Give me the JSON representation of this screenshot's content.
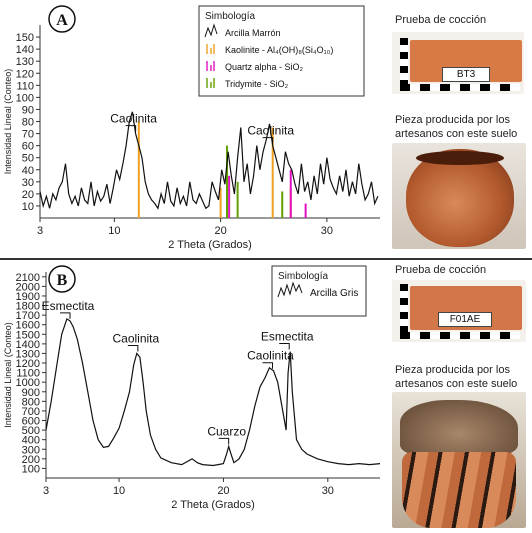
{
  "colors": {
    "brown": "#c86f3a",
    "dark": "#333333",
    "gray": "#555555",
    "kaolinite": "#f0a020",
    "quartz": "#e010c0",
    "tridymite": "#60a000",
    "sample_gray": "#7d6d5a"
  },
  "panelA": {
    "letter": "A",
    "legend": {
      "title": "Simbología",
      "items": [
        {
          "label": "Arcilla Marrón",
          "icon": "dark-wave"
        },
        {
          "label": "Kaolinite - Al₄(OH)₈(Si₄O₁₀)",
          "icon": "orange-bars"
        },
        {
          "label": "Quartz alpha - SiO₂",
          "icon": "magenta-bars"
        },
        {
          "label": "Tridymite - SiO₂",
          "icon": "green-bars"
        }
      ]
    },
    "side": {
      "firing_title": "Prueba de cocción",
      "tile_label": "BT3",
      "piece_caption_line1": "Pieza producida por los",
      "piece_caption_line2": "artesanos con este suelo"
    }
  },
  "panelB": {
    "letter": "B",
    "legend": {
      "title": "Simbología",
      "items": [
        {
          "label": "Arcilla Gris",
          "icon": "dark-wave"
        }
      ]
    },
    "side": {
      "firing_title": "Prueba de cocción",
      "tile_label": "F01AE",
      "piece_caption_line1": "Pieza producida por los",
      "piece_caption_line2": "artesanos con este suelo"
    }
  },
  "chart_data": [
    {
      "type": "line",
      "xlabel": "2 Theta (Grados)",
      "ylabel": "Intensidad Lineal (Conteo)",
      "xlim": [
        3,
        35
      ],
      "ylim": [
        0,
        160
      ],
      "xticks": [
        3,
        10,
        20,
        30
      ],
      "yticks": [
        10,
        20,
        30,
        40,
        50,
        60,
        70,
        80,
        90,
        100,
        110,
        120,
        130,
        140,
        150
      ],
      "series": [
        {
          "name": "Arcilla Marrón",
          "x": [
            3.0,
            3.3,
            3.6,
            3.9,
            4.2,
            4.5,
            4.8,
            5.1,
            5.4,
            5.7,
            6.0,
            6.3,
            6.6,
            6.9,
            7.2,
            7.5,
            7.8,
            8.1,
            8.4,
            8.7,
            9.0,
            9.3,
            9.6,
            9.9,
            10.2,
            10.5,
            10.8,
            11.1,
            11.4,
            11.7,
            12.0,
            12.3,
            12.6,
            12.9,
            13.2,
            13.5,
            13.8,
            14.1,
            14.4,
            14.7,
            15.0,
            15.3,
            15.6,
            15.9,
            16.2,
            16.5,
            16.8,
            17.1,
            17.4,
            17.7,
            18.0,
            18.3,
            18.6,
            18.9,
            19.2,
            19.5,
            19.8,
            20.1,
            20.4,
            20.7,
            21.0,
            21.3,
            21.6,
            21.9,
            22.2,
            22.5,
            22.8,
            23.1,
            23.4,
            23.7,
            24.0,
            24.3,
            24.6,
            24.9,
            25.2,
            25.5,
            25.8,
            26.1,
            26.4,
            26.7,
            27.0,
            27.3,
            27.6,
            27.9,
            28.2,
            28.5,
            28.8,
            29.1,
            29.4,
            29.7,
            30.0,
            30.3,
            30.6,
            30.9,
            31.2,
            31.5,
            31.8,
            32.1,
            32.4,
            32.7,
            33.0,
            33.3,
            33.6,
            33.9,
            34.2,
            34.5,
            34.8
          ],
          "y": [
            22,
            10,
            18,
            8,
            20,
            15,
            25,
            30,
            45,
            20,
            12,
            18,
            10,
            25,
            15,
            12,
            30,
            10,
            22,
            14,
            18,
            28,
            12,
            25,
            40,
            32,
            45,
            60,
            80,
            88,
            70,
            60,
            50,
            30,
            20,
            15,
            12,
            8,
            20,
            12,
            30,
            14,
            10,
            25,
            12,
            18,
            10,
            30,
            15,
            12,
            20,
            14,
            8,
            10,
            30,
            22,
            15,
            40,
            28,
            55,
            35,
            20,
            50,
            75,
            30,
            45,
            20,
            35,
            60,
            40,
            55,
            65,
            78,
            60,
            50,
            40,
            30,
            55,
            45,
            40,
            28,
            20,
            45,
            22,
            30,
            15,
            35,
            20,
            45,
            28,
            50,
            32,
            25,
            20,
            35,
            22,
            40,
            18,
            30,
            20,
            45,
            28,
            15,
            20,
            30,
            12,
            18
          ]
        }
      ],
      "reference_lines": {
        "kaolinite": [
          {
            "x": 12.3,
            "y": 80
          },
          {
            "x": 20.0,
            "y": 25
          },
          {
            "x": 24.9,
            "y": 75
          },
          {
            "x": 26.6,
            "y": 25
          }
        ],
        "quartz": [
          {
            "x": 20.8,
            "y": 35
          },
          {
            "x": 26.6,
            "y": 40
          },
          {
            "x": 28.0,
            "y": 12
          }
        ],
        "tridymite": [
          {
            "x": 20.6,
            "y": 60
          },
          {
            "x": 21.6,
            "y": 30
          },
          {
            "x": 25.8,
            "y": 22
          }
        ]
      },
      "annotations": [
        {
          "text": "Caolinita",
          "x": 12.0
        },
        {
          "text": "Caolinita",
          "x": 24.9
        }
      ]
    },
    {
      "type": "line",
      "xlabel": "2 Theta (Grados)",
      "ylabel": "Intensidad Lineal (Conteo)",
      "xlim": [
        3,
        35
      ],
      "ylim": [
        0,
        2150
      ],
      "xticks": [
        3,
        10,
        20,
        30
      ],
      "yticks": [
        100,
        200,
        300,
        400,
        500,
        600,
        700,
        800,
        900,
        1000,
        1100,
        1200,
        1300,
        1400,
        1500,
        1600,
        1700,
        1800,
        1900,
        2000,
        2100
      ],
      "series": [
        {
          "name": "Arcilla Gris",
          "x": [
            3.0,
            3.5,
            4.0,
            4.5,
            5.0,
            5.3,
            5.6,
            6.0,
            6.5,
            7.0,
            7.5,
            8.0,
            8.5,
            9.0,
            9.5,
            10.0,
            10.5,
            11.0,
            11.4,
            11.7,
            12.0,
            12.3,
            12.6,
            13.0,
            13.5,
            14.0,
            15.0,
            16.0,
            17.0,
            17.5,
            18.0,
            19.0,
            19.5,
            20.0,
            20.3,
            20.5,
            20.7,
            21.0,
            21.5,
            22.0,
            22.5,
            23.0,
            23.5,
            24.0,
            24.4,
            24.8,
            25.2,
            25.6,
            26.0,
            26.2,
            26.4,
            26.6,
            27.0,
            27.5,
            28.0,
            29.0,
            30.0,
            31.0,
            32.0,
            33.0,
            34.0,
            35.0
          ],
          "y": [
            500,
            800,
            1150,
            1500,
            1660,
            1640,
            1580,
            1450,
            1200,
            900,
            600,
            400,
            320,
            330,
            420,
            520,
            700,
            900,
            1180,
            1300,
            1260,
            1000,
            700,
            450,
            300,
            210,
            160,
            140,
            200,
            160,
            140,
            130,
            140,
            150,
            250,
            330,
            260,
            160,
            200,
            300,
            500,
            750,
            950,
            1050,
            1150,
            1120,
            1000,
            750,
            500,
            1100,
            1320,
            900,
            400,
            300,
            250,
            200,
            170,
            150,
            140,
            150,
            140,
            150
          ]
        }
      ],
      "annotations": [
        {
          "text": "Esmectita",
          "x": 5.3
        },
        {
          "text": "Caolinita",
          "x": 11.8
        },
        {
          "text": "Cuarzo",
          "x": 20.5
        },
        {
          "text": "Caolinita",
          "x": 24.7
        },
        {
          "text": "Esmectita",
          "x": 26.3
        }
      ]
    }
  ]
}
